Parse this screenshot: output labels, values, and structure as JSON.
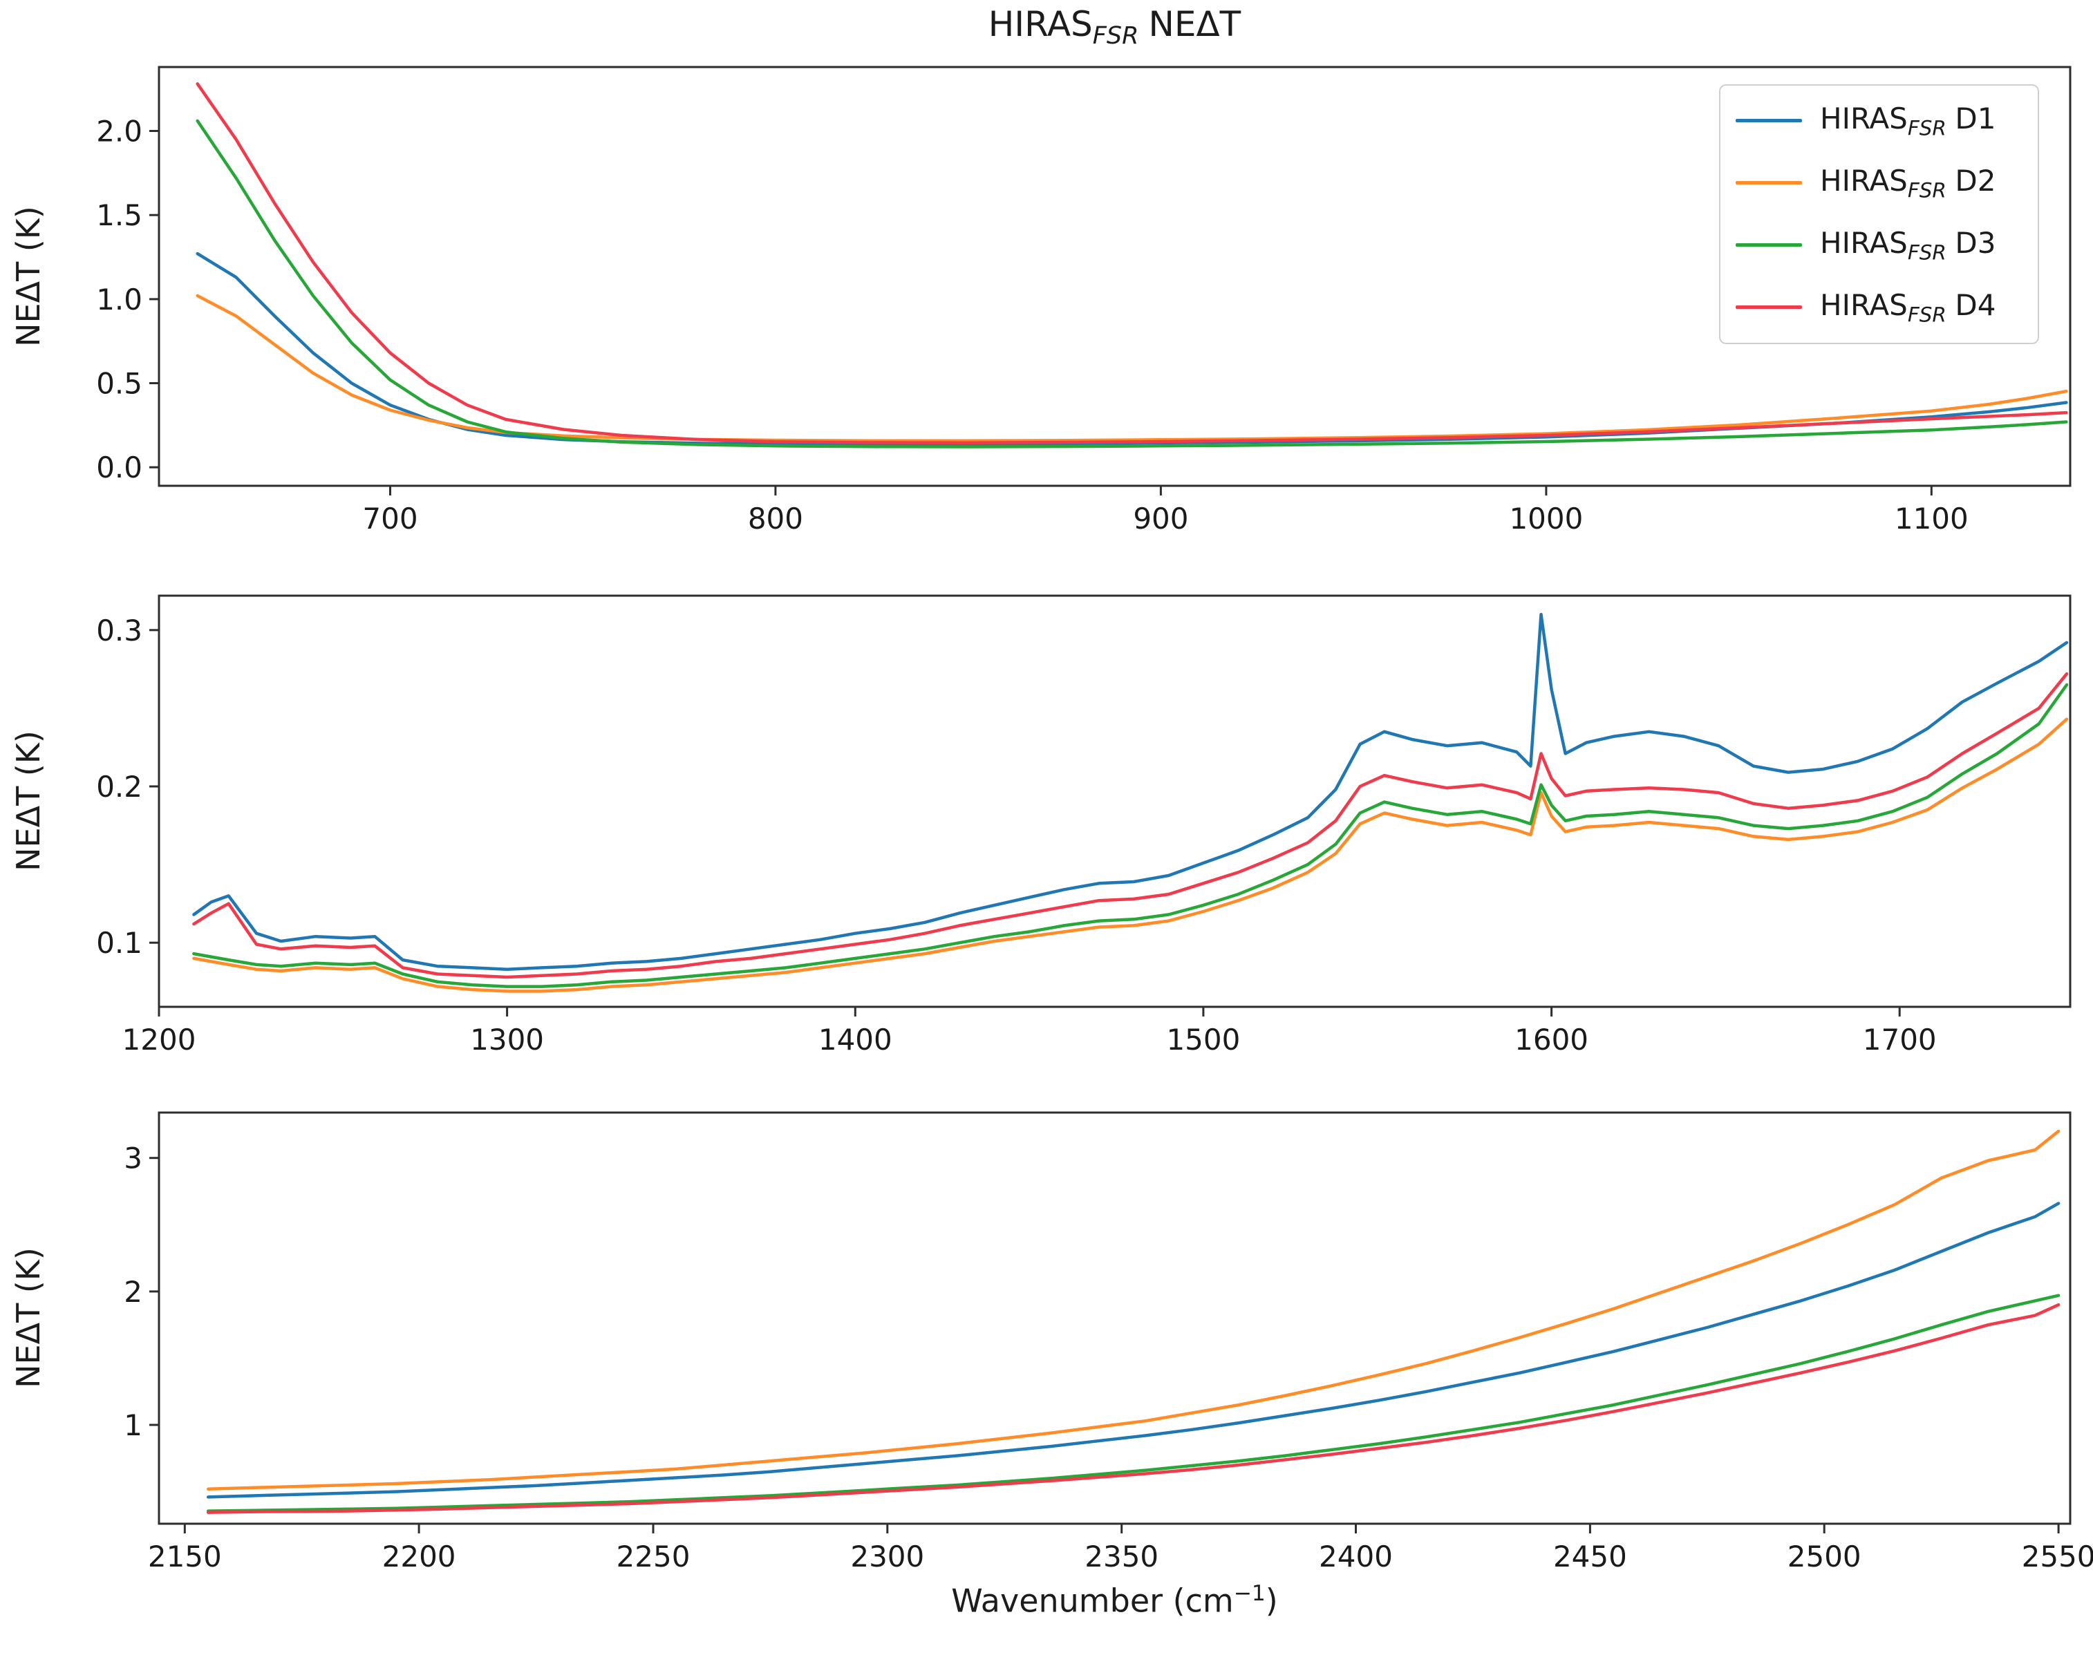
{
  "chart_data": {
    "type": "line",
    "title": {
      "prefix": "HIRAS",
      "subscript": "FSR",
      "suffix": "NEΔT",
      "plain": "HIRAS_FSR NEΔT"
    },
    "xlabel": {
      "prefix": "Wavenumber (cm",
      "superscript": "−1",
      "suffix": ")",
      "plain": "Wavenumber (cm^-1)"
    },
    "ylabel": "NEΔT (K)",
    "grid": false,
    "legend_position": "upper right of first subplot",
    "colors": {
      "D1": "#1f77b4",
      "D2": "#ff8c26",
      "D3": "#26a737",
      "D4": "#ef3b4b"
    },
    "draw_order": [
      "D1",
      "D2",
      "D3",
      "D4"
    ],
    "legend": [
      {
        "series": "D1",
        "prefix": "HIRAS",
        "subscript": "FSR",
        "suffix": "D1"
      },
      {
        "series": "D2",
        "prefix": "HIRAS",
        "subscript": "FSR",
        "suffix": "D2"
      },
      {
        "series": "D3",
        "prefix": "HIRAS",
        "subscript": "FSR",
        "suffix": "D3"
      },
      {
        "series": "D4",
        "prefix": "HIRAS",
        "subscript": "FSR",
        "suffix": "D4"
      }
    ],
    "subplots": [
      {
        "band": "longwave",
        "xlim": [
          640,
          1136
        ],
        "ylim": [
          -0.11,
          2.38
        ],
        "xticks": [
          700,
          800,
          900,
          1000,
          1100
        ],
        "yticks": [
          "0.0",
          "0.5",
          "1.0",
          "1.5",
          "2.0"
        ],
        "x": [
          650,
          660,
          670,
          680,
          690,
          700,
          710,
          720,
          730,
          745,
          760,
          780,
          800,
          825,
          850,
          875,
          900,
          925,
          950,
          975,
          1000,
          1025,
          1050,
          1075,
          1100,
          1115,
          1125,
          1135
        ],
        "series": {
          "D1": [
            1.27,
            1.13,
            0.9,
            0.68,
            0.5,
            0.37,
            0.285,
            0.225,
            0.19,
            0.165,
            0.152,
            0.143,
            0.139,
            0.138,
            0.139,
            0.141,
            0.145,
            0.15,
            0.157,
            0.166,
            0.18,
            0.202,
            0.232,
            0.262,
            0.3,
            0.33,
            0.355,
            0.385
          ],
          "D2": [
            1.02,
            0.9,
            0.73,
            0.56,
            0.43,
            0.34,
            0.28,
            0.235,
            0.207,
            0.187,
            0.175,
            0.166,
            0.161,
            0.158,
            0.158,
            0.16,
            0.164,
            0.169,
            0.176,
            0.186,
            0.2,
            0.222,
            0.252,
            0.292,
            0.335,
            0.375,
            0.41,
            0.452
          ],
          "D3": [
            2.06,
            1.72,
            1.35,
            1.02,
            0.74,
            0.52,
            0.37,
            0.27,
            0.21,
            0.172,
            0.15,
            0.135,
            0.127,
            0.123,
            0.122,
            0.124,
            0.127,
            0.131,
            0.137,
            0.144,
            0.153,
            0.166,
            0.182,
            0.202,
            0.222,
            0.24,
            0.254,
            0.27
          ],
          "D4": [
            2.28,
            1.95,
            1.57,
            1.22,
            0.92,
            0.68,
            0.5,
            0.37,
            0.285,
            0.225,
            0.19,
            0.165,
            0.152,
            0.147,
            0.146,
            0.149,
            0.153,
            0.159,
            0.167,
            0.177,
            0.19,
            0.21,
            0.235,
            0.262,
            0.288,
            0.303,
            0.313,
            0.325
          ]
        }
      },
      {
        "band": "midwave",
        "xlim": [
          1200,
          1749
        ],
        "ylim": [
          0.059,
          0.322
        ],
        "xticks": [
          1200,
          1300,
          1400,
          1500,
          1600,
          1700
        ],
        "yticks": [
          "0.1",
          "0.2",
          "0.3"
        ],
        "x": [
          1210,
          1215,
          1220,
          1228,
          1235,
          1245,
          1255,
          1262,
          1270,
          1280,
          1290,
          1300,
          1310,
          1320,
          1330,
          1340,
          1350,
          1360,
          1370,
          1380,
          1390,
          1400,
          1410,
          1420,
          1430,
          1440,
          1450,
          1460,
          1470,
          1480,
          1490,
          1500,
          1510,
          1520,
          1530,
          1538,
          1545,
          1552,
          1560,
          1570,
          1580,
          1590,
          1594,
          1597,
          1600,
          1604,
          1610,
          1618,
          1628,
          1638,
          1648,
          1658,
          1668,
          1678,
          1688,
          1698,
          1708,
          1718,
          1728,
          1740,
          1748
        ],
        "series": {
          "D1": [
            0.118,
            0.126,
            0.13,
            0.106,
            0.101,
            0.104,
            0.103,
            0.104,
            0.089,
            0.085,
            0.084,
            0.083,
            0.084,
            0.085,
            0.087,
            0.088,
            0.09,
            0.093,
            0.096,
            0.099,
            0.102,
            0.106,
            0.109,
            0.113,
            0.119,
            0.124,
            0.129,
            0.134,
            0.138,
            0.139,
            0.143,
            0.151,
            0.159,
            0.169,
            0.18,
            0.198,
            0.227,
            0.235,
            0.23,
            0.226,
            0.228,
            0.222,
            0.213,
            0.31,
            0.262,
            0.221,
            0.228,
            0.232,
            0.235,
            0.232,
            0.226,
            0.213,
            0.209,
            0.211,
            0.216,
            0.224,
            0.237,
            0.254,
            0.266,
            0.28,
            0.292
          ],
          "D2": [
            0.09,
            0.088,
            0.086,
            0.083,
            0.082,
            0.084,
            0.083,
            0.084,
            0.077,
            0.072,
            0.07,
            0.069,
            0.069,
            0.07,
            0.072,
            0.073,
            0.075,
            0.077,
            0.079,
            0.081,
            0.084,
            0.087,
            0.09,
            0.093,
            0.097,
            0.101,
            0.104,
            0.107,
            0.11,
            0.111,
            0.114,
            0.12,
            0.127,
            0.135,
            0.145,
            0.157,
            0.176,
            0.183,
            0.179,
            0.175,
            0.177,
            0.172,
            0.169,
            0.196,
            0.181,
            0.171,
            0.174,
            0.175,
            0.177,
            0.175,
            0.173,
            0.168,
            0.166,
            0.168,
            0.171,
            0.177,
            0.185,
            0.199,
            0.211,
            0.227,
            0.243
          ],
          "D3": [
            0.093,
            0.091,
            0.089,
            0.086,
            0.085,
            0.087,
            0.086,
            0.087,
            0.08,
            0.075,
            0.073,
            0.072,
            0.072,
            0.073,
            0.075,
            0.076,
            0.078,
            0.08,
            0.082,
            0.084,
            0.087,
            0.09,
            0.093,
            0.096,
            0.1,
            0.104,
            0.107,
            0.111,
            0.114,
            0.115,
            0.118,
            0.124,
            0.131,
            0.14,
            0.15,
            0.163,
            0.183,
            0.19,
            0.186,
            0.182,
            0.184,
            0.179,
            0.176,
            0.201,
            0.188,
            0.178,
            0.181,
            0.182,
            0.184,
            0.182,
            0.18,
            0.175,
            0.173,
            0.175,
            0.178,
            0.184,
            0.193,
            0.208,
            0.221,
            0.24,
            0.265
          ],
          "D4": [
            0.112,
            0.119,
            0.125,
            0.099,
            0.096,
            0.098,
            0.097,
            0.098,
            0.084,
            0.08,
            0.079,
            0.078,
            0.079,
            0.08,
            0.082,
            0.083,
            0.085,
            0.088,
            0.09,
            0.093,
            0.096,
            0.099,
            0.102,
            0.106,
            0.111,
            0.115,
            0.119,
            0.123,
            0.127,
            0.128,
            0.131,
            0.138,
            0.145,
            0.154,
            0.164,
            0.178,
            0.2,
            0.207,
            0.203,
            0.199,
            0.201,
            0.196,
            0.192,
            0.221,
            0.205,
            0.194,
            0.197,
            0.198,
            0.199,
            0.198,
            0.196,
            0.189,
            0.186,
            0.188,
            0.191,
            0.197,
            0.206,
            0.221,
            0.234,
            0.25,
            0.272
          ]
        }
      },
      {
        "band": "shortwave",
        "xlim": [
          2144.5,
          2552.5
        ],
        "ylim": [
          0.26,
          3.34
        ],
        "xticks": [
          2150,
          2200,
          2250,
          2300,
          2350,
          2400,
          2450,
          2500,
          2550
        ],
        "yticks": [
          "1",
          "2",
          "3"
        ],
        "x": [
          2155,
          2165,
          2175,
          2185,
          2195,
          2205,
          2215,
          2225,
          2235,
          2245,
          2255,
          2265,
          2275,
          2285,
          2295,
          2305,
          2315,
          2325,
          2335,
          2345,
          2355,
          2365,
          2375,
          2385,
          2395,
          2405,
          2415,
          2425,
          2435,
          2445,
          2455,
          2465,
          2475,
          2485,
          2495,
          2505,
          2515,
          2525,
          2535,
          2545,
          2550
        ],
        "series": {
          "D1": [
            0.46,
            0.47,
            0.48,
            0.49,
            0.5,
            0.515,
            0.53,
            0.545,
            0.565,
            0.585,
            0.605,
            0.625,
            0.65,
            0.68,
            0.71,
            0.74,
            0.77,
            0.805,
            0.84,
            0.88,
            0.92,
            0.965,
            1.015,
            1.07,
            1.125,
            1.185,
            1.25,
            1.32,
            1.39,
            1.47,
            1.55,
            1.64,
            1.73,
            1.83,
            1.93,
            2.04,
            2.16,
            2.3,
            2.44,
            2.56,
            2.66
          ],
          "D2": [
            0.52,
            0.53,
            0.54,
            0.55,
            0.56,
            0.575,
            0.59,
            0.61,
            0.63,
            0.65,
            0.67,
            0.7,
            0.73,
            0.76,
            0.79,
            0.825,
            0.86,
            0.9,
            0.94,
            0.985,
            1.03,
            1.09,
            1.15,
            1.22,
            1.295,
            1.375,
            1.46,
            1.555,
            1.655,
            1.76,
            1.87,
            1.99,
            2.11,
            2.23,
            2.36,
            2.5,
            2.65,
            2.85,
            2.98,
            3.06,
            3.2
          ],
          "D3": [
            0.355,
            0.36,
            0.365,
            0.37,
            0.375,
            0.385,
            0.395,
            0.405,
            0.415,
            0.425,
            0.44,
            0.455,
            0.47,
            0.49,
            0.51,
            0.53,
            0.55,
            0.575,
            0.6,
            0.63,
            0.66,
            0.695,
            0.73,
            0.77,
            0.815,
            0.86,
            0.91,
            0.965,
            1.02,
            1.085,
            1.15,
            1.225,
            1.3,
            1.38,
            1.46,
            1.55,
            1.645,
            1.75,
            1.85,
            1.93,
            1.97
          ],
          "D4": [
            0.345,
            0.35,
            0.352,
            0.355,
            0.362,
            0.37,
            0.38,
            0.39,
            0.4,
            0.41,
            0.425,
            0.44,
            0.455,
            0.475,
            0.495,
            0.515,
            0.535,
            0.558,
            0.582,
            0.608,
            0.635,
            0.665,
            0.7,
            0.74,
            0.78,
            0.825,
            0.87,
            0.92,
            0.975,
            1.035,
            1.1,
            1.17,
            1.24,
            1.315,
            1.39,
            1.47,
            1.555,
            1.65,
            1.75,
            1.82,
            1.9
          ]
        }
      }
    ]
  }
}
